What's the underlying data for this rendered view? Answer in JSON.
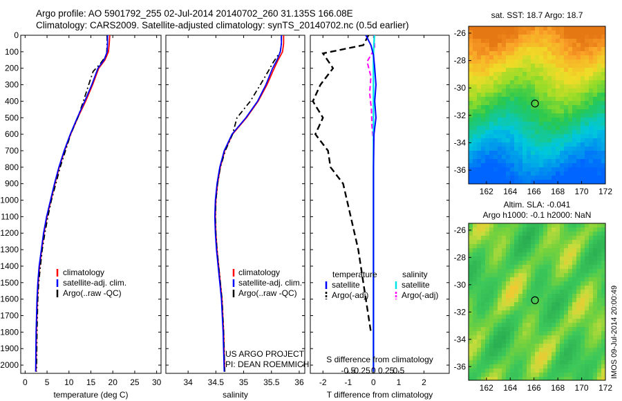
{
  "titles": {
    "line1": "Argo profile: AO 5901792_255 02-Jul-2014 20140702_260 31.135S 166.08E",
    "line2": "Climatology: CARS2009. Satellite-adjusted climatology: synTS_20140702.nc (0.5d earlier)"
  },
  "colors": {
    "climatology": "#ff0000",
    "satellite": "#0000ff",
    "argo": "#000000",
    "sal_satellite": "#00e5e5",
    "sal_argo": "#ff00ff"
  },
  "depth_ticks": [
    "0",
    "100",
    "200",
    "300",
    "400",
    "500",
    "600",
    "700",
    "800",
    "900",
    "1000",
    "1100",
    "1200",
    "1300",
    "1400",
    "1500",
    "1600",
    "1700",
    "1800",
    "1900",
    "2000"
  ],
  "chart_data": [
    {
      "type": "line",
      "xlabel": "temperature (deg C)",
      "xlim": [
        -1,
        31
      ],
      "ylim": [
        0,
        2050
      ],
      "xticks": [
        "0",
        "5",
        "10",
        "15",
        "20",
        "25",
        "30"
      ],
      "legend": [
        "climatology",
        "satellite-adj. clim.",
        "Argo(..raw -QC)"
      ],
      "series": [
        {
          "name": "climatology",
          "x": [
            19.3,
            19.2,
            19.0,
            18.2,
            16.8,
            15.4,
            13.8,
            12.0,
            10.4,
            9.0,
            7.8,
            6.8,
            5.9,
            5.0,
            4.3,
            3.8,
            3.3,
            3.0,
            2.8,
            2.6,
            2.5
          ],
          "y": [
            0,
            50,
            100,
            150,
            200,
            300,
            400,
            500,
            600,
            700,
            800,
            900,
            1000,
            1100,
            1200,
            1300,
            1400,
            1500,
            1600,
            1800,
            2040
          ]
        },
        {
          "name": "satellite-adj. clim.",
          "x": [
            18.8,
            18.8,
            18.7,
            18.0,
            16.6,
            15.2,
            13.6,
            11.9,
            10.3,
            8.9,
            7.7,
            6.7,
            5.8,
            4.9,
            4.2,
            3.7,
            3.2,
            2.9,
            2.7,
            2.5,
            2.4
          ],
          "y": [
            0,
            50,
            100,
            150,
            200,
            300,
            400,
            500,
            600,
            700,
            800,
            900,
            1000,
            1100,
            1200,
            1300,
            1400,
            1500,
            1600,
            1800,
            2040
          ]
        },
        {
          "name": "Argo(..raw -QC)",
          "x": [
            18.7,
            18.7,
            18.6,
            17.2,
            15.5,
            14.5,
            13.3,
            12.0,
            10.4,
            9.2,
            8.0,
            7.0,
            6.0,
            5.2,
            4.5,
            3.9,
            3.5,
            3.1,
            2.9,
            2.7,
            2.6
          ],
          "y": [
            0,
            50,
            120,
            170,
            220,
            300,
            400,
            500,
            600,
            700,
            800,
            900,
            1000,
            1100,
            1200,
            1300,
            1400,
            1500,
            1600,
            1800,
            2040
          ]
        }
      ]
    },
    {
      "type": "line",
      "xlabel": "salinity",
      "xlim": [
        33.6,
        36.1
      ],
      "ylim": [
        0,
        2050
      ],
      "xticks": [
        "34",
        "34.5",
        "35",
        "35.5",
        "36"
      ],
      "legend": [
        "climatology",
        "satellite-adj. clim.",
        "Argo(..raw -QC)"
      ],
      "annotation": [
        "US ARGO PROJECT",
        "PI: DEAN ROEMMICH"
      ],
      "series": [
        {
          "name": "climatology",
          "x": [
            35.72,
            35.72,
            35.7,
            35.62,
            35.55,
            35.42,
            35.26,
            35.05,
            34.8,
            34.66,
            34.58,
            34.53,
            34.5,
            34.49,
            34.5,
            34.52,
            34.55,
            34.58,
            34.61,
            34.64,
            34.66
          ],
          "y": [
            0,
            50,
            100,
            150,
            200,
            300,
            400,
            500,
            600,
            700,
            800,
            900,
            1000,
            1100,
            1200,
            1300,
            1400,
            1500,
            1600,
            1800,
            2040
          ]
        },
        {
          "name": "satellite-adj. clim.",
          "x": [
            35.68,
            35.68,
            35.66,
            35.6,
            35.52,
            35.4,
            35.25,
            35.04,
            34.79,
            34.65,
            34.57,
            34.52,
            34.49,
            34.48,
            34.49,
            34.51,
            34.54,
            34.57,
            34.6,
            34.63,
            34.65
          ],
          "y": [
            0,
            50,
            100,
            150,
            200,
            300,
            400,
            500,
            600,
            700,
            800,
            900,
            1000,
            1100,
            1200,
            1300,
            1400,
            1500,
            1600,
            1800,
            2040
          ]
        },
        {
          "name": "Argo(..raw -QC)",
          "x": [
            35.68,
            35.68,
            35.66,
            35.52,
            35.44,
            35.3,
            35.12,
            34.88,
            34.8,
            34.67,
            34.58,
            34.53,
            34.5,
            34.49,
            34.5,
            34.52,
            34.55,
            34.58,
            34.61,
            34.64,
            34.66
          ],
          "y": [
            0,
            50,
            100,
            170,
            220,
            300,
            400,
            500,
            600,
            700,
            800,
            900,
            1000,
            1100,
            1200,
            1300,
            1400,
            1500,
            1600,
            1800,
            2040
          ]
        }
      ]
    },
    {
      "type": "line",
      "xlabel": "T difference from climatology",
      "xlabel_top": "S difference from climatology",
      "xlim": [
        -2.5,
        3.0
      ],
      "ylim": [
        0,
        2050
      ],
      "xticks": [
        "-2",
        "-1",
        "0",
        "1",
        "2"
      ],
      "xticks_salinity": [
        "-0.5",
        "-0.25",
        "0",
        "0.25",
        "0.5"
      ],
      "legend_groups": [
        {
          "header": "temperature",
          "items": [
            "satellite",
            "Argo(-adj)"
          ]
        },
        {
          "header": "salinity",
          "items": [
            "satellite",
            "Argo(-adj)"
          ]
        }
      ],
      "series": [
        {
          "name": "temperature satellite",
          "x": [
            -0.3,
            -0.1,
            0.0,
            0.05,
            0.1,
            0.05,
            0.1,
            0.02,
            0.0,
            0.0,
            0.0,
            0.0,
            0.0,
            0.0,
            0.0
          ],
          "y": [
            0,
            60,
            120,
            200,
            300,
            400,
            500,
            600,
            800,
            1000,
            1200,
            1400,
            1600,
            1800,
            2040
          ]
        },
        {
          "name": "temperature Argo(-adj)",
          "x": [
            -0.2,
            -0.4,
            -2.0,
            -1.6,
            -2.1,
            -2.4,
            -2.0,
            -2.3,
            -1.8,
            -1.7,
            -1.2,
            -0.9,
            -0.6,
            -0.4,
            -0.1
          ],
          "y": [
            0,
            60,
            110,
            200,
            300,
            400,
            500,
            600,
            700,
            800,
            900,
            1100,
            1300,
            1500,
            1800
          ]
        },
        {
          "name": "salinity satellite",
          "x": [
            0.04,
            0.0,
            0.0,
            0.0,
            0.0,
            0.0,
            0.0,
            0.0,
            0.0
          ],
          "y": [
            0,
            100,
            200,
            400,
            600,
            800,
            1200,
            1600,
            2040
          ]
        },
        {
          "name": "salinity Argo(-adj)",
          "x": [
            0.02,
            0.05,
            -0.25,
            -0.1,
            -0.15,
            -0.08,
            -0.06,
            0.0
          ],
          "y": [
            0,
            80,
            160,
            250,
            350,
            450,
            550,
            650
          ]
        }
      ]
    }
  ],
  "maps": [
    {
      "title": "sat. SST: 18.7 Argo: 18.7",
      "xticks": [
        "162",
        "164",
        "166",
        "168",
        "170",
        "172"
      ],
      "yticks": [
        "-26",
        "-28",
        "-30",
        "-32",
        "-34",
        "-36"
      ],
      "marker": {
        "lon": 166.08,
        "lat": -31.135
      },
      "colormap": "sst"
    },
    {
      "title_line1": "Altim. SLA: -0.041",
      "title_line2": "Argo h1000: -0.1 h2000: NaN",
      "xticks": [
        "162",
        "164",
        "166",
        "168",
        "170",
        "172"
      ],
      "yticks": [
        "-26",
        "-28",
        "-30",
        "-32",
        "-34",
        "-36"
      ],
      "marker": {
        "lon": 166.08,
        "lat": -31.135
      },
      "colormap": "sla"
    }
  ],
  "stamp": "IMOS 09-Jul-2014 20:00:49"
}
